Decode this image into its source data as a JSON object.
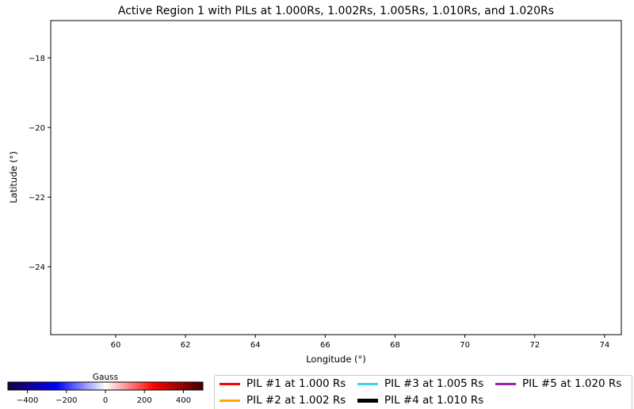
{
  "chart_data": {
    "type": "line",
    "title": "Active Region 1 with PILs at 1.000Rs, 1.002Rs, 1.005Rs, 1.010Rs, and 1.020Rs",
    "xlabel": "Longitude (°)",
    "ylabel": "Latitude (°)",
    "xlim": [
      58.14,
      74.48
    ],
    "ylim": [
      -25.95,
      -16.93
    ],
    "xticks": [
      60,
      62,
      64,
      66,
      68,
      70,
      72,
      74
    ],
    "yticks": [
      -18,
      -20,
      -22,
      -24
    ],
    "xtick_labels": [
      "60",
      "62",
      "64",
      "66",
      "68",
      "70",
      "72",
      "74"
    ],
    "ytick_labels": [
      "−18",
      "−20",
      "−22",
      "−24"
    ],
    "grid": false,
    "legend_placement": "bottom-center",
    "series": [
      {
        "name": "PIL #1 at 1.000 Rs",
        "color": "#ff0000",
        "points": []
      },
      {
        "name": "PIL #2 at 1.002 Rs",
        "color": "#ffa500",
        "points": []
      },
      {
        "name": "PIL #3 at 1.005 Rs",
        "color": "#40d0f0",
        "points": []
      },
      {
        "name": "PIL #4 at 1.010 Rs",
        "color": "#000000",
        "points": []
      },
      {
        "name": "PIL #5 at 1.020 Rs",
        "color": "#9b20b8",
        "points": []
      }
    ],
    "colorbar": {
      "label": "Gauss",
      "range": [
        -500,
        500
      ],
      "ticks": [
        -400,
        -200,
        0,
        200,
        400
      ],
      "tick_labels": [
        "−400",
        "−200",
        "0",
        "200",
        "400"
      ],
      "colors": [
        "#1a0040",
        "#0000ff",
        "#ffffff",
        "#ff0000",
        "#400000"
      ]
    }
  }
}
